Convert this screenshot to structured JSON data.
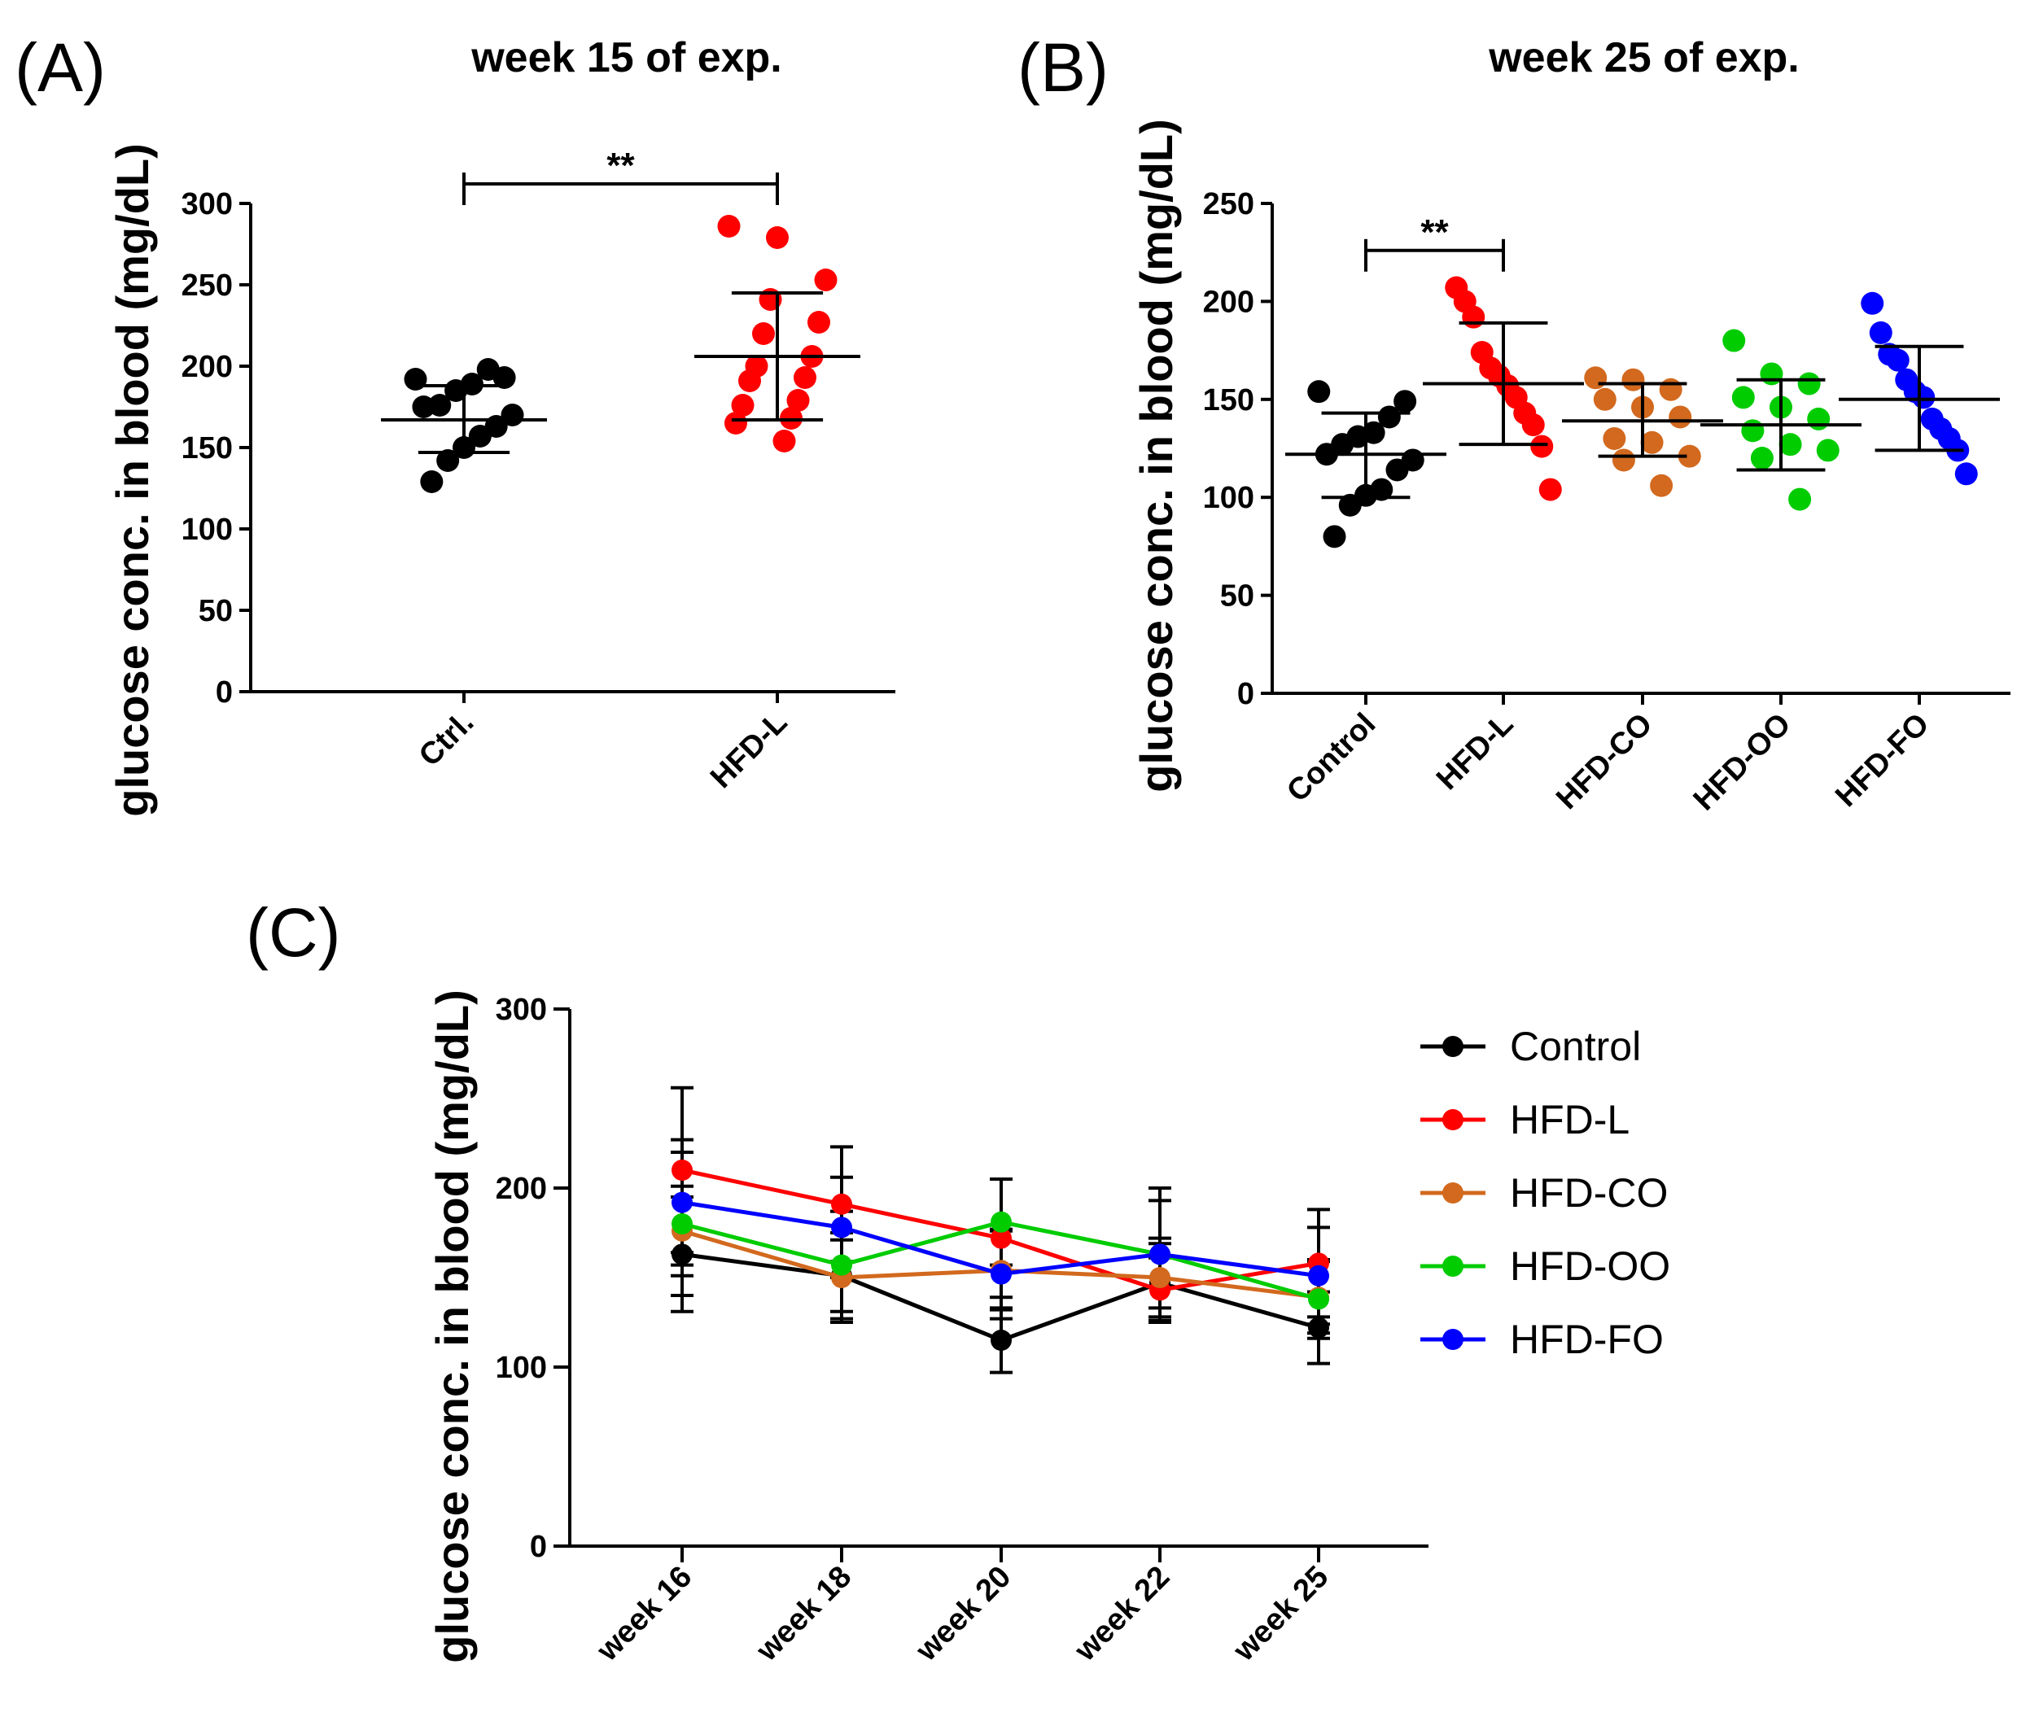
{
  "panelA": {
    "letter": "(A)",
    "chart_data": {
      "type": "scatter",
      "title": "week 15 of exp.",
      "ylabel": "glucose conc. in blood (mg/dL)",
      "ylim": [
        0,
        300
      ],
      "yticks": [
        0,
        50,
        100,
        150,
        200,
        250,
        300
      ],
      "categories": [
        "Ctrl.",
        "HFD-L"
      ],
      "series": [
        {
          "name": "Ctrl.",
          "color": "#000000",
          "mean": 167,
          "sd_low": 147,
          "sd_high": 188,
          "points": [
            192,
            193,
            198,
            189,
            185,
            176,
            175,
            170,
            163,
            157,
            150,
            142,
            129
          ]
        },
        {
          "name": "HFD-L",
          "color": "#ff0000",
          "mean": 206,
          "sd_low": 167,
          "sd_high": 245,
          "points": [
            286,
            279,
            253,
            241,
            227,
            220,
            206,
            200,
            193,
            191,
            179,
            176,
            168,
            165,
            154
          ]
        }
      ],
      "significance": {
        "label": "**",
        "from": 0,
        "to": 1,
        "y": 312
      }
    }
  },
  "panelB": {
    "letter": "(B)",
    "chart_data": {
      "type": "scatter",
      "title": "week 25 of exp.",
      "ylabel": "glucose conc. in blood (mg/dL)",
      "ylim": [
        0,
        250
      ],
      "yticks": [
        0,
        50,
        100,
        150,
        200,
        250
      ],
      "categories": [
        "Control",
        "HFD-L",
        "HFD-CO",
        "HFD-OO",
        "HFD-FO"
      ],
      "series": [
        {
          "name": "Control",
          "color": "#000000",
          "mean": 122,
          "sd_low": 100,
          "sd_high": 143,
          "points": [
            154,
            149,
            141,
            133,
            131,
            127,
            122,
            119,
            114,
            104,
            101,
            96,
            80
          ]
        },
        {
          "name": "HFD-L",
          "color": "#ff0000",
          "mean": 158,
          "sd_low": 127,
          "sd_high": 189,
          "points": [
            207,
            200,
            192,
            174,
            166,
            162,
            157,
            151,
            143,
            137,
            126,
            104
          ]
        },
        {
          "name": "HFD-CO",
          "color": "#d2691e",
          "mean": 139,
          "sd_low": 121,
          "sd_high": 158,
          "points": [
            161,
            160,
            155,
            150,
            146,
            141,
            130,
            128,
            121,
            119,
            106
          ]
        },
        {
          "name": "HFD-OO",
          "color": "#00cc00",
          "mean": 137,
          "sd_low": 114,
          "sd_high": 160,
          "points": [
            180,
            163,
            158,
            151,
            146,
            140,
            134,
            127,
            124,
            120,
            99
          ]
        },
        {
          "name": "HFD-FO",
          "color": "#0000ff",
          "mean": 150,
          "sd_low": 124,
          "sd_high": 177,
          "points": [
            199,
            184,
            173,
            170,
            160,
            154,
            151,
            140,
            135,
            130,
            124,
            112
          ]
        }
      ],
      "significance": {
        "label": "**",
        "from": 0,
        "to": 1,
        "y": 226
      }
    }
  },
  "panelC": {
    "letter": "(C)",
    "chart_data": {
      "type": "line",
      "ylabel": "glucose conc. in blood (mg/dL)",
      "ylim": [
        0,
        300
      ],
      "yticks": [
        0,
        100,
        200,
        300
      ],
      "categories": [
        "week 16",
        "week 18",
        "week 20",
        "week 22",
        "week 25"
      ],
      "legend_position": "top-right",
      "series": [
        {
          "name": "Control",
          "color": "#000000",
          "values": [
            163,
            151,
            115,
            147,
            122
          ],
          "err": [
            32,
            20,
            18,
            22,
            20
          ]
        },
        {
          "name": "HFD-L",
          "color": "#ff0000",
          "values": [
            210,
            191,
            172,
            143,
            158
          ],
          "err": [
            46,
            32,
            33,
            18,
            30
          ]
        },
        {
          "name": "HFD-CO",
          "color": "#d2691e",
          "values": [
            176,
            150,
            154,
            150,
            139
          ],
          "err": [
            25,
            25,
            22,
            22,
            20
          ]
        },
        {
          "name": "HFD-OO",
          "color": "#00cc00",
          "values": [
            180,
            157,
            181,
            163,
            138
          ],
          "err": [
            40,
            30,
            24,
            30,
            22
          ]
        },
        {
          "name": "HFD-FO",
          "color": "#0000ff",
          "values": [
            192,
            178,
            152,
            163,
            151
          ],
          "err": [
            35,
            28,
            25,
            37,
            27
          ]
        }
      ]
    }
  }
}
